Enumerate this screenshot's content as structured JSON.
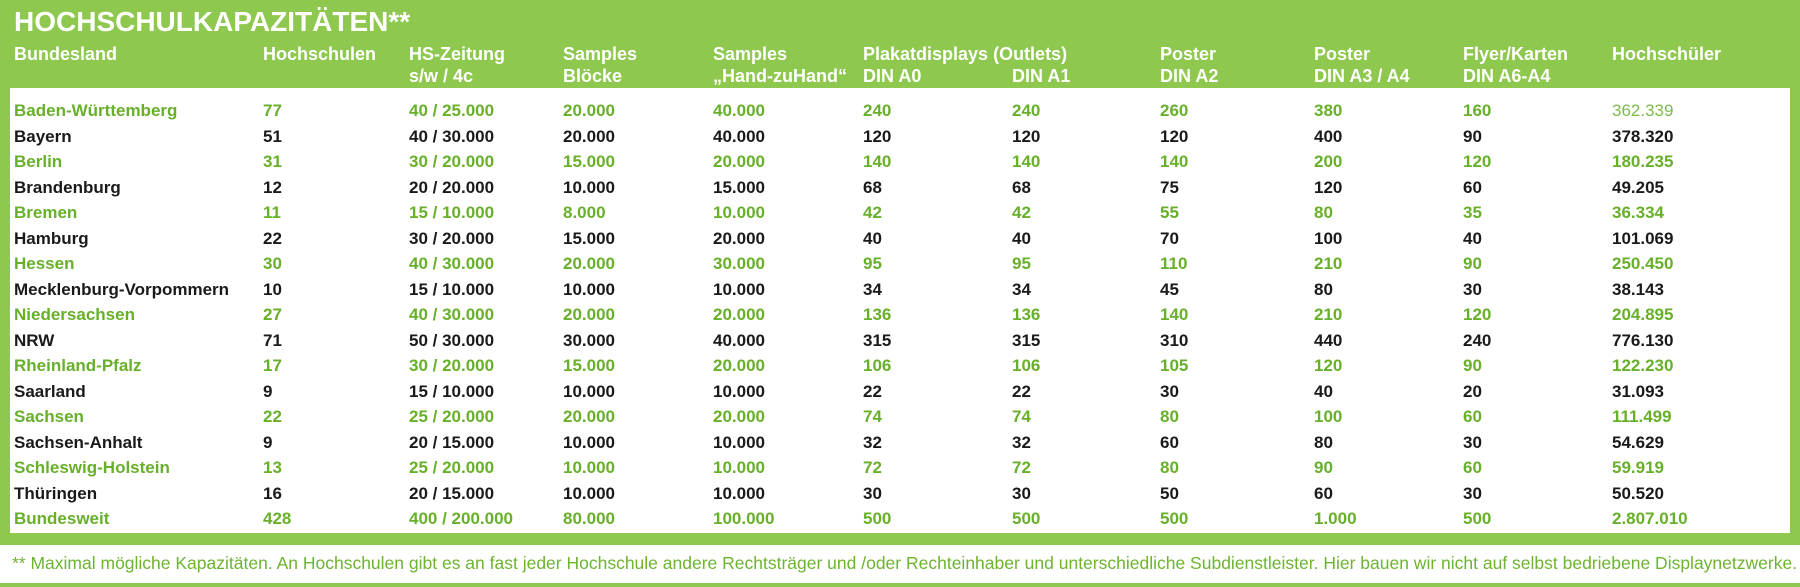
{
  "title": "HOCHSCHULKAPAZITÄTEN**",
  "colors": {
    "green_background": "#8ec84e",
    "green_text": "#68b02a",
    "black_text": "#1a1a1a",
    "header_text": "#ffffff"
  },
  "table": {
    "columns": [
      {
        "line1": "Bundesland",
        "line2": ""
      },
      {
        "line1": "Hochschulen",
        "line2": ""
      },
      {
        "line1": "HS-Zeitung",
        "line2": "s/w / 4c"
      },
      {
        "line1": "Samples",
        "line2": "Blöcke"
      },
      {
        "line1": "Samples",
        "line2": "„Hand-zuHand“"
      },
      {
        "line1": "Plakatdisplays (Outlets)",
        "line2": "DIN A0"
      },
      {
        "line1": "",
        "line2": "DIN A1"
      },
      {
        "line1": "Poster",
        "line2": "DIN A2"
      },
      {
        "line1": "Poster",
        "line2": "DIN A3 / A4"
      },
      {
        "line1": "Flyer/Karten",
        "line2": "DIN A6-A4"
      },
      {
        "line1": "Hochschüler",
        "line2": ""
      }
    ],
    "rows": [
      {
        "color": "green",
        "cells": [
          "Baden-Württemberg",
          "77",
          "40 / 25.000",
          "20.000",
          "40.000",
          "240",
          "240",
          "260",
          "380",
          "160",
          "362.339"
        ]
      },
      {
        "color": "black",
        "cells": [
          "Bayern",
          "51",
          "40 / 30.000",
          "20.000",
          "40.000",
          "120",
          "120",
          "120",
          "400",
          "90",
          "378.320"
        ]
      },
      {
        "color": "green",
        "cells": [
          "Berlin",
          "31",
          "30 / 20.000",
          "15.000",
          "20.000",
          "140",
          "140",
          "140",
          "200",
          "120",
          "180.235"
        ]
      },
      {
        "color": "black",
        "cells": [
          "Brandenburg",
          "12",
          "20 / 20.000",
          "10.000",
          "15.000",
          "68",
          "68",
          "75",
          "120",
          "60",
          "49.205"
        ]
      },
      {
        "color": "green",
        "cells": [
          "Bremen",
          "11",
          "15 / 10.000",
          "8.000",
          "10.000",
          "42",
          "42",
          "55",
          "80",
          "35",
          "36.334"
        ]
      },
      {
        "color": "black",
        "cells": [
          "Hamburg",
          "22",
          "30 / 20.000",
          "15.000",
          "20.000",
          "40",
          "40",
          "70",
          "100",
          "40",
          "101.069"
        ]
      },
      {
        "color": "green",
        "cells": [
          "Hessen",
          "30",
          "40 / 30.000",
          "20.000",
          "30.000",
          "95",
          "95",
          "110",
          "210",
          "90",
          "250.450"
        ]
      },
      {
        "color": "black",
        "cells": [
          "Mecklenburg-Vorpommern",
          "10",
          "15 / 10.000",
          "10.000",
          "10.000",
          "34",
          "34",
          "45",
          "80",
          "30",
          "38.143"
        ]
      },
      {
        "color": "green",
        "cells": [
          "Niedersachsen",
          "27",
          "40 / 30.000",
          "20.000",
          "20.000",
          "136",
          "136",
          "140",
          "210",
          "120",
          "204.895"
        ]
      },
      {
        "color": "black",
        "cells": [
          "NRW",
          "71",
          "50 / 30.000",
          "30.000",
          "40.000",
          "315",
          "315",
          "310",
          "440",
          "240",
          "776.130"
        ]
      },
      {
        "color": "green",
        "cells": [
          "Rheinland-Pfalz",
          "17",
          "30 / 20.000",
          "15.000",
          "20.000",
          "106",
          "106",
          "105",
          "120",
          "90",
          "122.230"
        ]
      },
      {
        "color": "black",
        "cells": [
          "Saarland",
          "9",
          "15 / 10.000",
          "10.000",
          "10.000",
          "22",
          "22",
          "30",
          "40",
          "20",
          "31.093"
        ]
      },
      {
        "color": "green",
        "cells": [
          "Sachsen",
          "22",
          "25 / 20.000",
          "20.000",
          "20.000",
          "74",
          "74",
          "80",
          "100",
          "60",
          "111.499"
        ]
      },
      {
        "color": "black",
        "cells": [
          "Sachsen-Anhalt",
          "9",
          "20 / 15.000",
          "10.000",
          "10.000",
          "32",
          "32",
          "60",
          "80",
          "30",
          "54.629"
        ]
      },
      {
        "color": "green",
        "cells": [
          "Schleswig-Holstein",
          "13",
          "25 / 20.000",
          "10.000",
          "10.000",
          "72",
          "72",
          "80",
          "90",
          "60",
          "59.919"
        ]
      },
      {
        "color": "black",
        "cells": [
          "Thüringen",
          "16",
          "20 / 15.000",
          "10.000",
          "10.000",
          "30",
          "30",
          "50",
          "60",
          "30",
          "50.520"
        ]
      },
      {
        "color": "green",
        "cells": [
          "Bundesweit",
          "428",
          "400 / 200.000",
          "80.000",
          "100.000",
          "500",
          "500",
          "500",
          "1.000",
          "500",
          "2.807.010"
        ]
      }
    ]
  },
  "footnote": "** Maximal mögliche Kapazitäten. An Hochschulen gibt es an fast jeder Hochschule andere Rechtsträger und /oder Rechteinhaber und unterschiedliche Subdienstleister. Hier bauen wir nicht auf selbst bedriebene Displaynetzwerke."
}
